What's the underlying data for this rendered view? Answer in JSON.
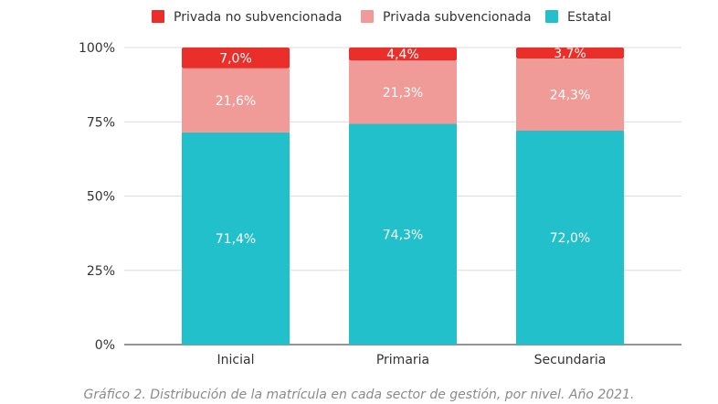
{
  "chart_data": {
    "type": "bar",
    "stacked": true,
    "categories": [
      "Inicial",
      "Primaria",
      "Secundaria"
    ],
    "series": [
      {
        "name": "Estatal",
        "color": "#21c0cb",
        "values": [
          71.4,
          74.3,
          72.0
        ],
        "labels": [
          "71,4%",
          "74,3%",
          "72,0%"
        ]
      },
      {
        "name": "Privada subvencionada",
        "color": "#f19b99",
        "values": [
          21.6,
          21.3,
          24.3
        ],
        "labels": [
          "21,6%",
          "21,3%",
          "24,3%"
        ]
      },
      {
        "name": "Privada no subvencionada",
        "color": "#ea2e2a",
        "values": [
          7.0,
          4.4,
          3.7
        ],
        "labels": [
          "7,0%",
          "4,4%",
          "3,7%"
        ]
      }
    ],
    "legend_order": [
      "Privada no subvencionada",
      "Privada subvencionada",
      "Estatal"
    ],
    "y_ticks": [
      {
        "value": 0,
        "label": "0%"
      },
      {
        "value": 25,
        "label": "25%"
      },
      {
        "value": 50,
        "label": "50%"
      },
      {
        "value": 75,
        "label": "75%"
      },
      {
        "value": 100,
        "label": "100%"
      }
    ],
    "ylim": [
      0,
      100
    ],
    "grid": true,
    "legend_position": "top"
  },
  "caption": "Gráfico 2. Distribución de la matrícula en cada sector de gestión, por nivel. Año 2021."
}
